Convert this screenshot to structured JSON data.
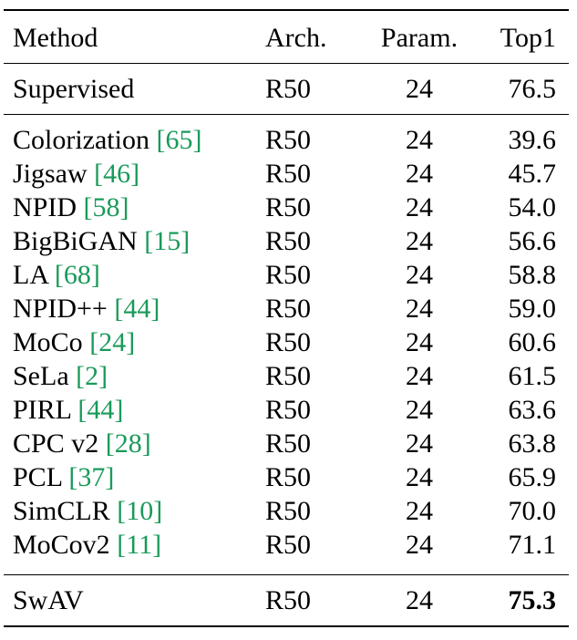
{
  "colors": {
    "citation": "#1a9a5a",
    "text": "#000000",
    "rule": "#000000"
  },
  "header": {
    "method": "Method",
    "arch": "Arch.",
    "param": "Param.",
    "top1": "Top1"
  },
  "supervised": {
    "method": "Supervised",
    "arch": "R50",
    "param": "24",
    "top1": "76.5"
  },
  "methods": [
    {
      "name": "Colorization",
      "cite": "65",
      "arch": "R50",
      "param": "24",
      "top1": "39.6"
    },
    {
      "name": "Jigsaw",
      "cite": "46",
      "arch": "R50",
      "param": "24",
      "top1": "45.7"
    },
    {
      "name": "NPID",
      "cite": "58",
      "arch": "R50",
      "param": "24",
      "top1": "54.0"
    },
    {
      "name": "BigBiGAN",
      "cite": "15",
      "arch": "R50",
      "param": "24",
      "top1": "56.6"
    },
    {
      "name": "LA",
      "cite": "68",
      "arch": "R50",
      "param": "24",
      "top1": "58.8"
    },
    {
      "name": "NPID++",
      "cite": "44",
      "arch": "R50",
      "param": "24",
      "top1": "59.0"
    },
    {
      "name": "MoCo",
      "cite": "24",
      "arch": "R50",
      "param": "24",
      "top1": "60.6"
    },
    {
      "name": "SeLa",
      "cite": "2",
      "arch": "R50",
      "param": "24",
      "top1": "61.5"
    },
    {
      "name": "PIRL",
      "cite": "44",
      "arch": "R50",
      "param": "24",
      "top1": "63.6"
    },
    {
      "name": "CPC v2",
      "cite": "28",
      "arch": "R50",
      "param": "24",
      "top1": "63.8"
    },
    {
      "name": "PCL",
      "cite": "37",
      "arch": "R50",
      "param": "24",
      "top1": "65.9"
    },
    {
      "name": "SimCLR",
      "cite": "10",
      "arch": "R50",
      "param": "24",
      "top1": "70.0"
    },
    {
      "name": "MoCov2",
      "cite": "11",
      "arch": "R50",
      "param": "24",
      "top1": "71.1"
    }
  ],
  "swav": {
    "method": "SwAV",
    "arch": "R50",
    "param": "24",
    "top1": "75.3"
  }
}
